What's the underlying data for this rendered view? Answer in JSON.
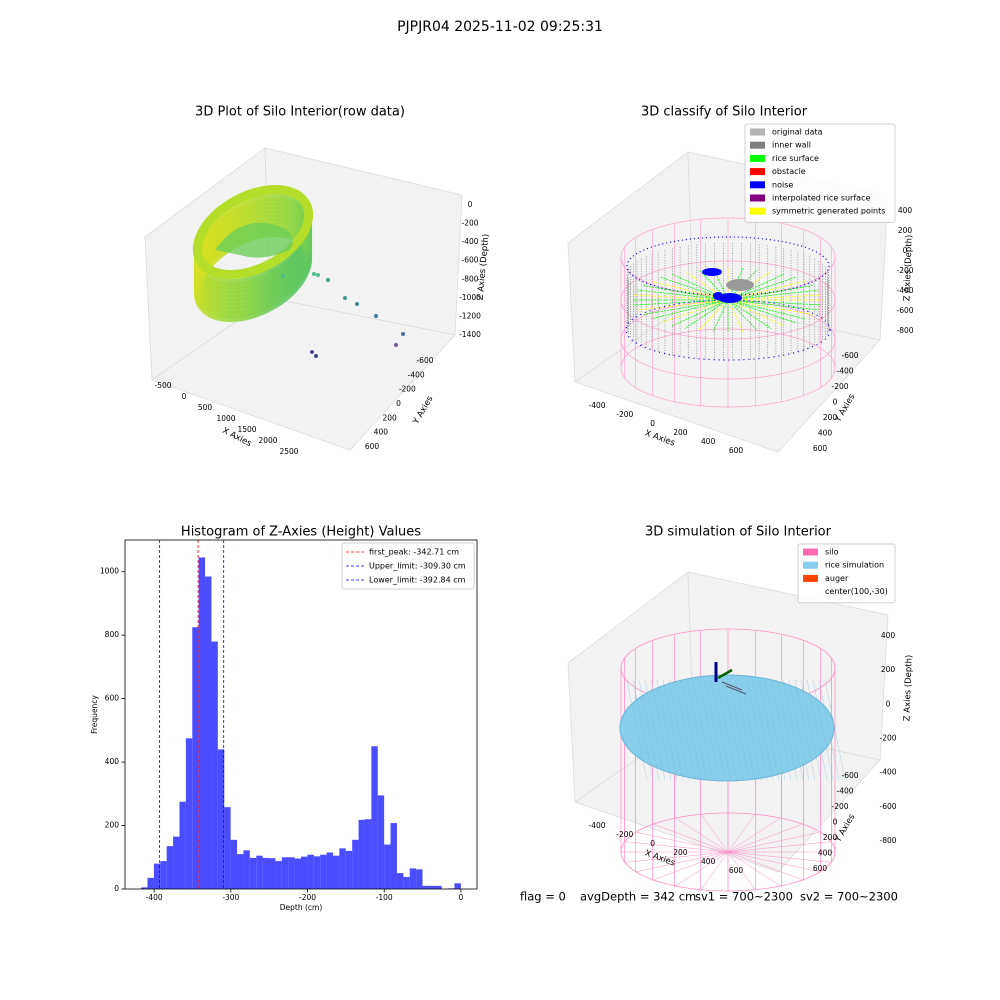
{
  "title": "PJPJR04 2025-11-02 09:25:31",
  "chart_data": [
    {
      "type": "scatter3d",
      "title": "3D Plot of Silo Interior(row data)",
      "xlabel": "X Axies",
      "ylabel": "Y Axies",
      "zlabel": "Z Axies (Depth)",
      "xlim": [
        -650,
        2750
      ],
      "xticks": [
        -500,
        0,
        500,
        1000,
        1500,
        2000,
        2500
      ],
      "ylim": [
        -700,
        700
      ],
      "yticks": [
        -600,
        -400,
        -200,
        0,
        200,
        400,
        600
      ],
      "zlim": [
        -1550,
        150
      ],
      "zticks": [
        -1400,
        -1200,
        -1000,
        -800,
        -600,
        -400,
        -200,
        0
      ]
    },
    {
      "type": "classify3d",
      "title": "3D classify of Silo Interior",
      "xlabel": "X Axies",
      "ylabel": "Y Axies",
      "zlabel": "Z Axies (Depth)",
      "xlim": [
        -500,
        700
      ],
      "xticks": [
        -400,
        -200,
        0,
        200,
        400,
        600
      ],
      "ylim": [
        -700,
        700
      ],
      "yticks": [
        -600,
        -400,
        -200,
        0,
        200,
        400,
        600
      ],
      "zlim": [
        -900,
        500
      ],
      "zticks": [
        -800,
        -600,
        -400,
        -200,
        0,
        200,
        400
      ],
      "legend_loc": "upper right",
      "legend": [
        {
          "name": "original data",
          "color": "#b3b3b3"
        },
        {
          "name": "inner wall",
          "color": "#808080"
        },
        {
          "name": "rice surface",
          "color": "#00ff00"
        },
        {
          "name": "obstacle",
          "color": "#ff0000"
        },
        {
          "name": "noise",
          "color": "#0000ff"
        },
        {
          "name": "interpolated rice surface",
          "color": "#800080"
        },
        {
          "name": "symmetric generated points",
          "color": "#ffff00"
        }
      ]
    },
    {
      "type": "histogram",
      "title": "Histogram of Z-Axies (Height) Values",
      "xlabel": "Depth (cm)",
      "ylabel": "Frequency",
      "color": "#0000ff",
      "alpha": 0.7,
      "xlim": [
        -438,
        21
      ],
      "xticks": [
        -400,
        -300,
        -200,
        -100,
        0
      ],
      "ylim": [
        0,
        1100
      ],
      "yticks": [
        0,
        200,
        400,
        600,
        800,
        1000
      ],
      "bins": [
        -417.0,
        -408.66,
        -400.32,
        -391.98,
        -383.64,
        -375.3,
        -366.96,
        -358.62,
        -350.28,
        -341.94,
        -333.6,
        -325.26,
        -316.92,
        -308.58,
        -300.24,
        -291.9,
        -283.56,
        -275.22,
        -266.88,
        -258.54,
        -250.2,
        -241.86,
        -233.52,
        -225.18,
        -216.84,
        -208.5,
        -200.16,
        -191.82,
        -183.48,
        -175.14,
        -166.8,
        -158.46,
        -150.12,
        -141.78,
        -133.44,
        -125.1,
        -116.76,
        -108.42,
        -100.08,
        -91.74,
        -83.4,
        -75.06,
        -66.72,
        -58.38,
        -50.04,
        -41.7,
        -33.36,
        -25.02,
        -16.68,
        -8.34,
        0
      ],
      "counts": [
        5,
        35,
        80,
        88,
        135,
        165,
        275,
        475,
        825,
        1045,
        985,
        780,
        440,
        258,
        155,
        110,
        122,
        98,
        105,
        98,
        97,
        88,
        100,
        100,
        96,
        102,
        108,
        103,
        108,
        115,
        105,
        128,
        120,
        155,
        218,
        220,
        450,
        295,
        140,
        208,
        50,
        38,
        65,
        62,
        10,
        10,
        10,
        0,
        2,
        18
      ],
      "legend_loc": "upper right",
      "vlines": [
        {
          "name": "first_peak: -342.71 cm",
          "value": -342.71,
          "color": "#ff0000"
        },
        {
          "name": "Upper_limit: -309.30 cm",
          "value": -309.3,
          "color": "#0000ff"
        },
        {
          "name": "Lower_limit: -392.84 cm",
          "value": -392.84,
          "color": "#0000ff"
        }
      ]
    },
    {
      "type": "simulation3d",
      "title": "3D simulation of Silo Interior",
      "xlabel": "X Axies",
      "ylabel": "Y Axies",
      "zlabel": "Z Axies (Depth)",
      "xlim": [
        -500,
        700
      ],
      "xticks": [
        -400,
        -200,
        0,
        200,
        400,
        600
      ],
      "ylim": [
        -700,
        700
      ],
      "yticks": [
        -600,
        -400,
        -200,
        0,
        200,
        400,
        600
      ],
      "zlim": [
        -900,
        500
      ],
      "zticks": [
        -800,
        -600,
        -400,
        -200,
        0,
        200,
        400
      ],
      "legend_loc": "upper right",
      "legend": [
        {
          "name": "silo",
          "color": "#ff69b4"
        },
        {
          "name": "rice simulation",
          "color": "#87ceeb"
        },
        {
          "name": "auger",
          "color": "#ff4500"
        },
        {
          "name": "center(100,-30)"
        }
      ]
    }
  ],
  "footer": [
    "flag = 0",
    "avgDepth = 342 cm",
    "sv1 = 700~2300",
    "sv2 = 700~2300"
  ]
}
